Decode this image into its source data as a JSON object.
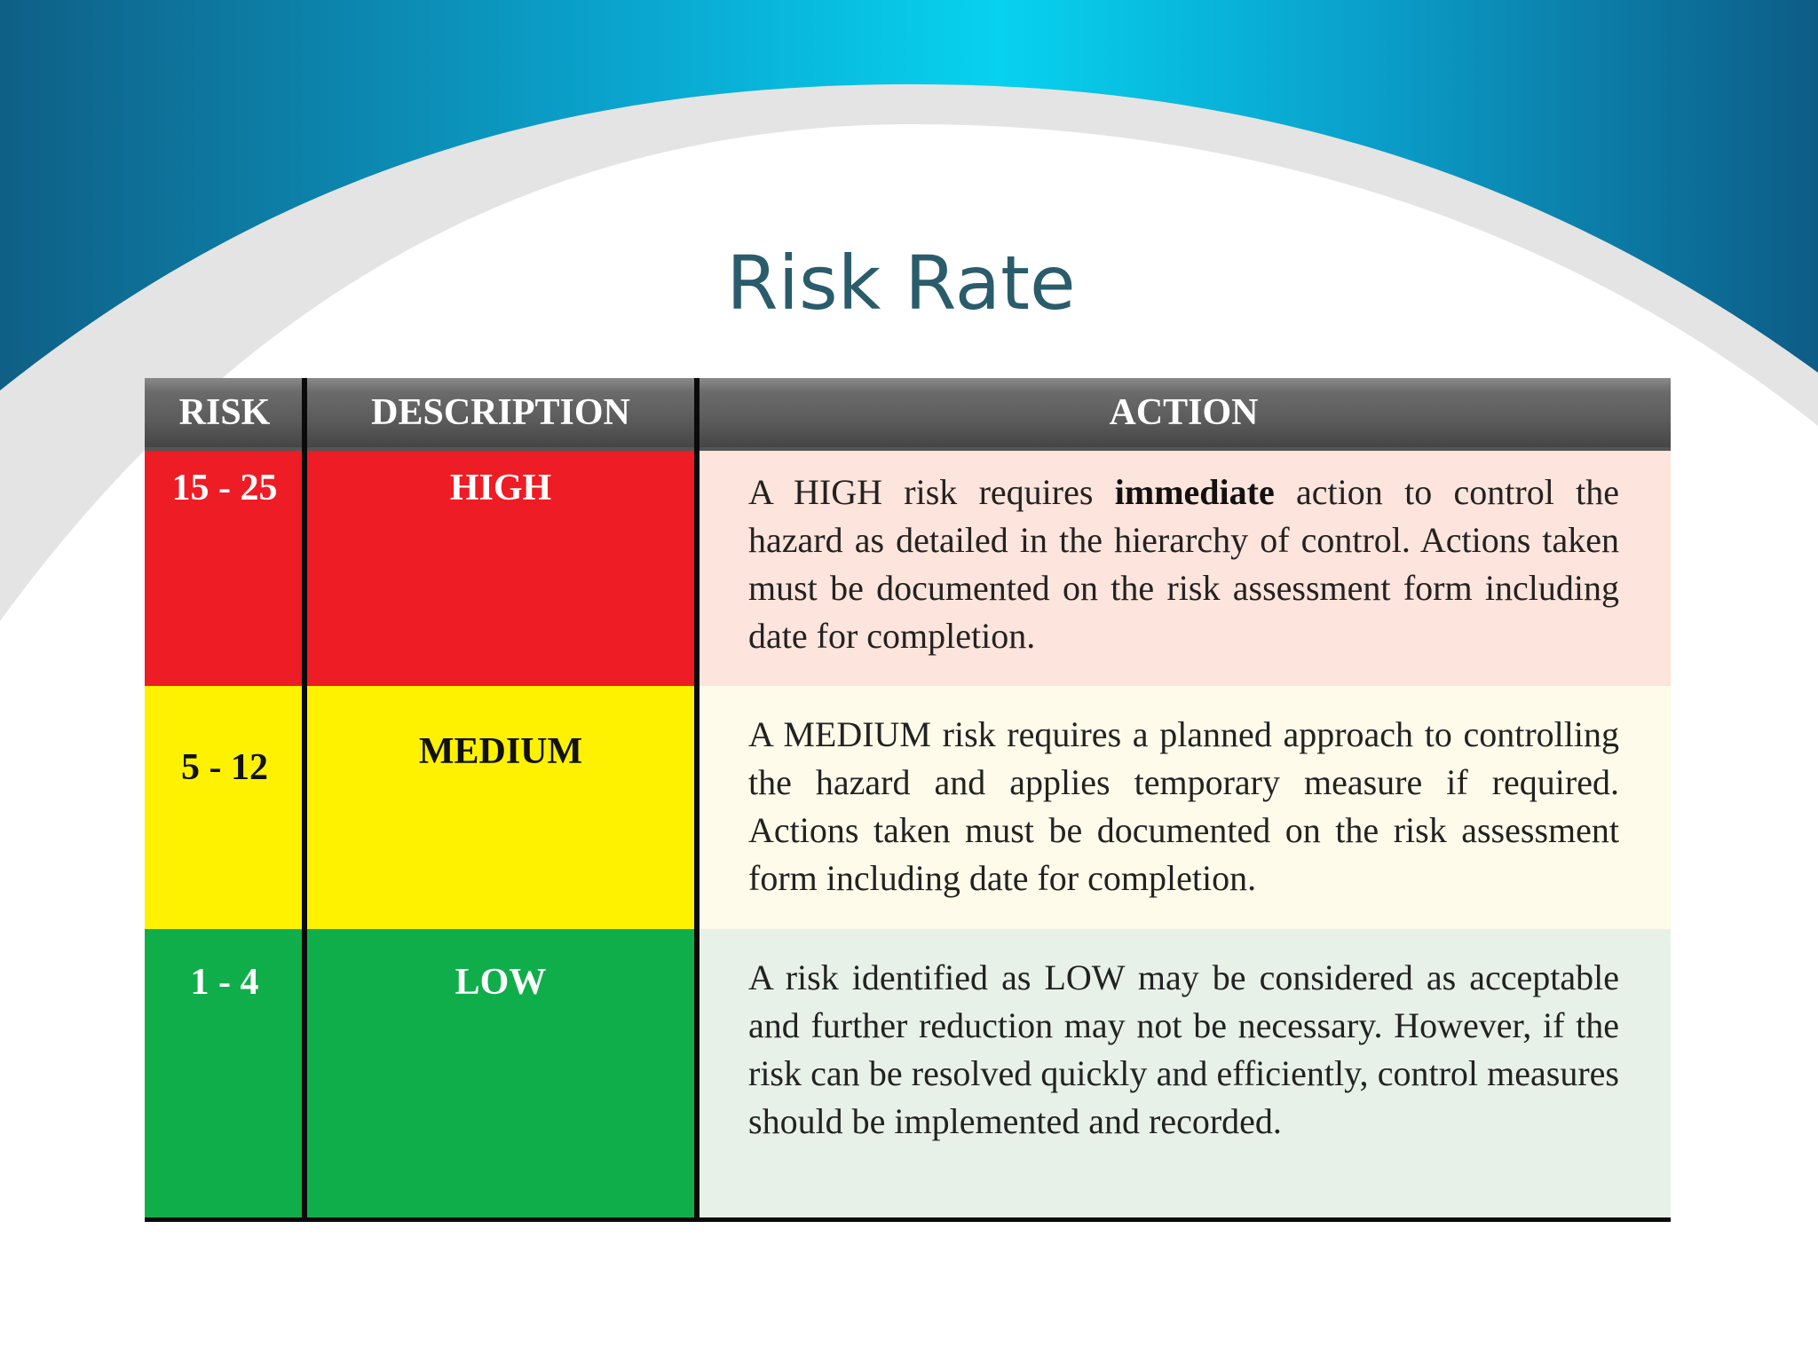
{
  "slide": {
    "title": "Risk Rate"
  },
  "colors": {
    "high": "#ee1c25",
    "medium": "#fef200",
    "low": "#10ae4b",
    "high_action_bg": "#fde4dc",
    "medium_action_bg": "#fefbea",
    "low_action_bg": "#e8f1e8",
    "title": "#2a5c6b",
    "header_bg": "#5c5c5c"
  },
  "table": {
    "headers": {
      "risk": "RISK",
      "description": "DESCRIPTION",
      "action": "ACTION"
    },
    "rows": [
      {
        "risk": "15 - 25",
        "description": "HIGH",
        "action_pre": "A HIGH risk requires ",
        "action_bold": "immediate",
        "action_post": " action to control the hazard as detailed in the hierarchy of control. Actions taken must be documented on the risk assessment form including date for completion."
      },
      {
        "risk": "5 - 12",
        "description": "MEDIUM",
        "action": "A MEDIUM risk requires a planned approach to controlling the hazard and applies temporary measure if required. Actions taken must be documented on the risk assessment form including date for completion."
      },
      {
        "risk": "1 - 4",
        "description": "LOW",
        "action": "A risk identified as LOW may be considered as acceptable and further reduction may not be necessary. However, if the risk can be resolved quickly and efficiently, control measures should be implemented and recorded."
      }
    ]
  }
}
